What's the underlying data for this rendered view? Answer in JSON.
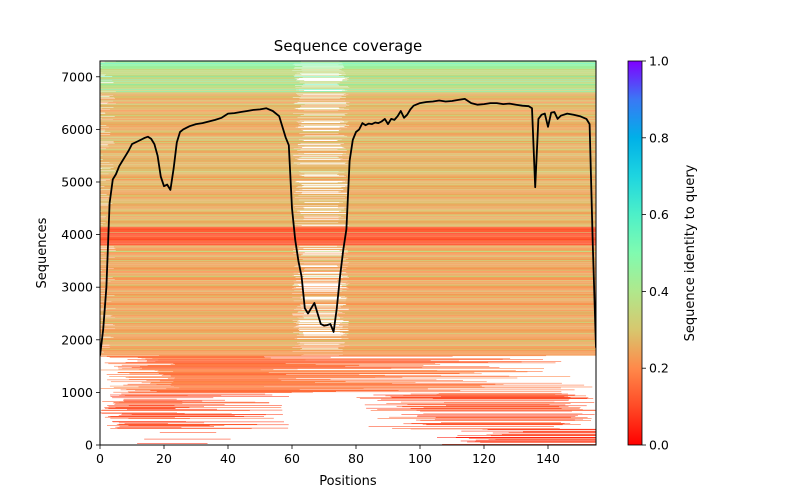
{
  "chart_data": {
    "type": "heatmap",
    "title": "Sequence coverage",
    "xlabel": "Positions",
    "ylabel": "Sequences",
    "xlim": [
      0,
      155
    ],
    "ylim": [
      0,
      7300
    ],
    "xticks": [
      0,
      20,
      40,
      60,
      80,
      100,
      120,
      140
    ],
    "yticks": [
      0,
      1000,
      2000,
      3000,
      4000,
      5000,
      6000,
      7000
    ],
    "grid": false,
    "colorbar": {
      "label": "Sequence identity to query",
      "range": [
        0,
        1
      ],
      "ticks": [
        "0.0",
        "0.2",
        "0.4",
        "0.6",
        "0.8",
        "1.0"
      ],
      "colormap": "rainbow_r",
      "placement": "right"
    },
    "heatmap_bands": [
      {
        "y_from": 0,
        "y_to": 300,
        "identity": 0.08,
        "x_coverage": "mostly right (pos 105-155) and sparse left"
      },
      {
        "y_from": 300,
        "y_to": 1000,
        "identity": 0.12,
        "x_coverage": "left (pos 0-60) and right (pos 80-155), gap 60-80"
      },
      {
        "y_from": 1000,
        "y_to": 1700,
        "identity": 0.17,
        "x_coverage": "broad, gaps near 60-80"
      },
      {
        "y_from": 1700,
        "y_to": 3800,
        "identity": 0.24,
        "x_coverage": "full width with sparse gap near 60-78"
      },
      {
        "y_from": 3800,
        "y_to": 4150,
        "identity": 0.12,
        "x_coverage": "full width, red band"
      },
      {
        "y_from": 4150,
        "y_to": 6700,
        "identity": 0.26,
        "x_coverage": "full width with sparse gap near 60-78"
      },
      {
        "y_from": 6700,
        "y_to": 7150,
        "identity": 0.36,
        "x_coverage": "full width"
      },
      {
        "y_from": 7150,
        "y_to": 7300,
        "identity": 0.45,
        "x_coverage": "full width"
      }
    ],
    "series": [
      {
        "name": "coverage",
        "color": "#000000",
        "x": [
          0,
          1,
          2,
          3,
          4,
          5,
          6,
          7,
          8,
          9,
          10,
          12,
          14,
          15,
          16,
          17,
          18,
          19,
          20,
          21,
          22,
          23,
          24,
          25,
          26,
          28,
          30,
          32,
          34,
          36,
          38,
          40,
          42,
          44,
          46,
          48,
          50,
          52,
          54,
          56,
          58,
          59,
          60,
          61,
          62,
          63,
          64,
          65,
          66,
          67,
          68,
          69,
          70,
          71,
          72,
          73,
          74,
          75,
          76,
          77,
          78,
          79,
          80,
          81,
          82,
          83,
          84,
          85,
          86,
          87,
          88,
          89,
          90,
          91,
          92,
          93,
          94,
          95,
          96,
          97,
          98,
          100,
          102,
          104,
          106,
          108,
          110,
          112,
          114,
          116,
          118,
          120,
          122,
          124,
          126,
          128,
          130,
          132,
          134,
          135,
          136,
          137,
          138,
          139,
          140,
          141,
          142,
          143,
          144,
          146,
          148,
          150,
          152,
          153,
          154,
          155
        ],
        "values": [
          1700,
          2200,
          3000,
          4600,
          5050,
          5150,
          5300,
          5400,
          5500,
          5600,
          5720,
          5780,
          5840,
          5860,
          5820,
          5720,
          5500,
          5100,
          4920,
          4950,
          4850,
          5250,
          5750,
          5950,
          6000,
          6060,
          6100,
          6120,
          6150,
          6180,
          6220,
          6300,
          6310,
          6330,
          6350,
          6370,
          6380,
          6400,
          6350,
          6250,
          5850,
          5700,
          4500,
          3900,
          3500,
          3200,
          2600,
          2500,
          2600,
          2700,
          2500,
          2300,
          2270,
          2280,
          2300,
          2150,
          2600,
          3200,
          3700,
          4100,
          5400,
          5800,
          5950,
          6000,
          6120,
          6080,
          6110,
          6100,
          6130,
          6120,
          6150,
          6200,
          6100,
          6200,
          6180,
          6250,
          6350,
          6220,
          6280,
          6380,
          6450,
          6500,
          6520,
          6530,
          6550,
          6530,
          6540,
          6560,
          6580,
          6500,
          6470,
          6480,
          6500,
          6500,
          6480,
          6490,
          6470,
          6450,
          6440,
          6400,
          4900,
          6200,
          6280,
          6300,
          6050,
          6320,
          6330,
          6200,
          6260,
          6300,
          6280,
          6250,
          6200,
          6100,
          3800,
          1850
        ]
      }
    ]
  }
}
